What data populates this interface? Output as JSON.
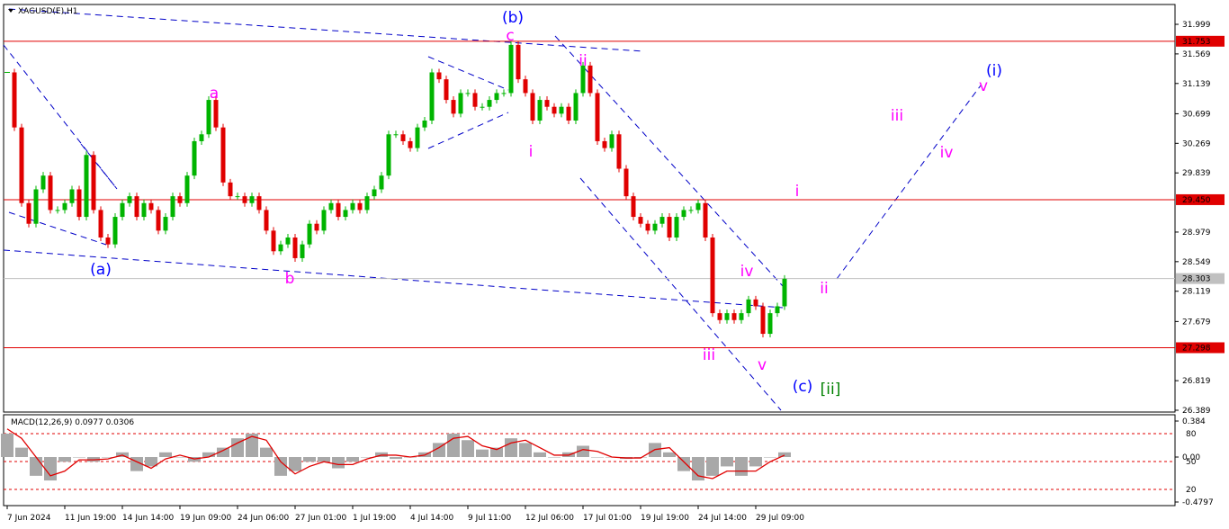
{
  "header": {
    "symbol": "XAGUSD(E),H1"
  },
  "chart_data": [
    {
      "type": "candlestick",
      "categories": [
        "7 Jun 2024",
        null,
        null,
        null,
        null,
        null,
        null,
        null,
        "11 Jun 19:00",
        null,
        null,
        null,
        null,
        null,
        null,
        null,
        "14 Jun 14:00",
        null,
        null,
        null,
        null,
        null,
        null,
        null,
        "19 Jun 09:00",
        null,
        null,
        null,
        null,
        null,
        null,
        null,
        "24 Jun 06:00",
        null,
        null,
        null,
        null,
        null,
        null,
        null,
        "27 Jun 01:00",
        null,
        null,
        null,
        null,
        null,
        null,
        null,
        "1 Jul 19:00",
        null,
        null,
        null,
        null,
        null,
        null,
        null,
        "4 Jul 14:00",
        null,
        null,
        null,
        null,
        null,
        null,
        null,
        "9 Jul 11:00",
        null,
        null,
        null,
        null,
        null,
        null,
        null,
        "12 Jul 06:00",
        null,
        null,
        null,
        null,
        null,
        null,
        null,
        "17 Jul 01:00",
        null,
        null,
        null,
        null,
        null,
        null,
        null,
        "19 Jul 19:00",
        null,
        null,
        null,
        null,
        null,
        null,
        null,
        "24 Jul 14:00",
        null,
        null,
        null,
        null,
        null,
        null,
        null,
        "29 Jul 09:00",
        null,
        null,
        null,
        null
      ],
      "closes": [
        31.3,
        30.5,
        29.4,
        29.1,
        29.6,
        29.8,
        29.3,
        29.3,
        29.4,
        29.6,
        29.2,
        30.1,
        29.3,
        28.9,
        28.8,
        29.2,
        29.4,
        29.5,
        29.2,
        29.4,
        29.3,
        29.0,
        29.2,
        29.5,
        29.4,
        29.8,
        30.3,
        30.4,
        30.9,
        30.5,
        29.7,
        29.5,
        29.5,
        29.4,
        29.5,
        29.3,
        29.0,
        28.7,
        28.8,
        28.9,
        28.6,
        28.8,
        29.1,
        29.0,
        29.3,
        29.4,
        29.2,
        29.3,
        29.4,
        29.3,
        29.5,
        29.6,
        29.8,
        30.4,
        30.4,
        30.3,
        30.2,
        30.5,
        30.6,
        31.3,
        31.2,
        30.9,
        30.7,
        31.0,
        31.0,
        30.8,
        30.8,
        30.9,
        31.0,
        31.0,
        31.7,
        31.2,
        31.0,
        30.6,
        30.9,
        30.8,
        30.7,
        30.8,
        30.6,
        31.0,
        31.4,
        31.0,
        30.3,
        30.2,
        30.4,
        29.9,
        29.5,
        29.2,
        29.1,
        29.0,
        29.1,
        29.2,
        28.9,
        29.2,
        29.3,
        29.3,
        29.4,
        28.9,
        27.8,
        27.7,
        27.8,
        27.7,
        27.8,
        28.0,
        27.9,
        27.5,
        27.8,
        27.9,
        28.3
      ],
      "up_color": "#00b400",
      "down_color": "#e00000",
      "ylim": [
        26.363,
        32.287
      ],
      "yticks": [
        31.999,
        31.569,
        31.139,
        30.699,
        30.269,
        29.839,
        28.979,
        28.549,
        28.119,
        27.679,
        26.819,
        26.389
      ],
      "levels": [
        31.753,
        {
          "value": 29.45,
          "label": "29.450"
        },
        27.298
      ],
      "level_color": "#e00000",
      "last": 28.303,
      "annotations": [
        {
          "text": "(b)",
          "color": "#0000ff"
        },
        {
          "text": "c",
          "color": "#ff00ff"
        },
        {
          "text": "ii",
          "color": "#ff00ff"
        },
        {
          "text": "a",
          "color": "#ff00ff"
        },
        {
          "text": "i",
          "color": "#ff00ff"
        },
        {
          "text": "(a)",
          "color": "#0000ff"
        },
        {
          "text": "b",
          "color": "#ff00ff"
        },
        {
          "text": "iv",
          "color": "#ff00ff"
        },
        {
          "text": "iii",
          "color": "#ff00ff"
        },
        {
          "text": "v",
          "color": "#ff00ff"
        },
        {
          "text": "(c)",
          "color": "#0000ff"
        },
        {
          "text": "[ii]",
          "color": "#008000"
        },
        {
          "text": "i",
          "color": "#ff00ff"
        },
        {
          "text": "ii",
          "color": "#ff00ff"
        },
        {
          "text": "iii",
          "color": "#ff00ff"
        },
        {
          "text": "iv",
          "color": "#ff00ff"
        },
        {
          "text": "v",
          "color": "#ff00ff"
        },
        {
          "text": "(i)",
          "color": "#0000ff"
        }
      ]
    },
    {
      "type": "macd",
      "title": "MACD(12,26,9) 0.0977 0.0306",
      "histogram": [
        0.25,
        0.1,
        -0.2,
        -0.25,
        -0.05,
        0,
        -0.05,
        0,
        0.05,
        -0.15,
        -0.1,
        0.05,
        0,
        -0.05,
        0.05,
        0.1,
        0.2,
        0.25,
        0.1,
        -0.2,
        -0.15,
        -0.05,
        -0.05,
        -0.12,
        -0.05,
        0,
        0.05,
        -0.02,
        0,
        0.05,
        0.15,
        0.25,
        0.18,
        0.08,
        0.1,
        0.2,
        0.15,
        0.05,
        0,
        0.05,
        0.12,
        0,
        0,
        -0.02,
        0,
        0.15,
        0.05,
        -0.15,
        -0.25,
        -0.2,
        -0.1,
        -0.2,
        -0.1,
        0,
        0.05
      ],
      "signal": [
        0.3,
        0.2,
        0,
        -0.2,
        -0.15,
        -0.03,
        -0.03,
        -0.02,
        0.02,
        -0.05,
        -0.12,
        -0.02,
        0.02,
        -0.02,
        0,
        0.07,
        0.15,
        0.22,
        0.18,
        -0.05,
        -0.18,
        -0.1,
        -0.05,
        -0.08,
        -0.08,
        -0.02,
        0.02,
        0.02,
        0,
        0.02,
        0.1,
        0.2,
        0.22,
        0.12,
        0.08,
        0.15,
        0.18,
        0.1,
        0.02,
        0.02,
        0.08,
        0.06,
        0,
        -0.01,
        -0.01,
        0.08,
        0.1,
        -0.05,
        -0.2,
        -0.23,
        -0.15,
        -0.15,
        -0.15,
        -0.05,
        0.02
      ],
      "hist_color": "#a8a8a8",
      "signal_color": "#e00000",
      "level_color": "#e00000",
      "ylim": [
        -0.4797,
        0.384
      ],
      "yticks": [
        0.384,
        {
          "value": 0,
          "label": "0.00"
        },
        -0.4797
      ],
      "y2lim": [
        6.5,
        93.5
      ],
      "y2ticks": [
        80,
        50,
        20
      ]
    }
  ]
}
